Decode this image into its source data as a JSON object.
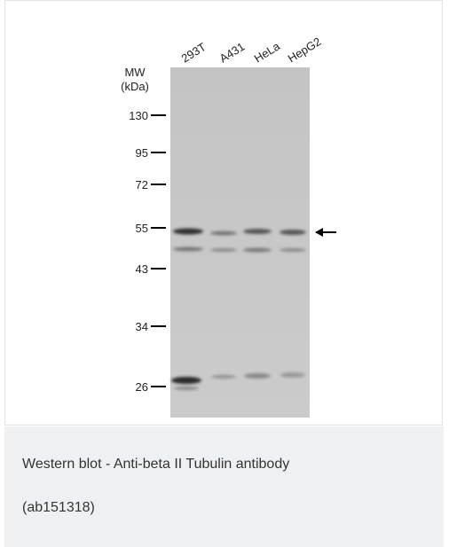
{
  "blot": {
    "lanes": [
      "293T",
      "A431",
      "HeLa",
      "HepG2"
    ],
    "mw_label": "MW",
    "unit_label": "(kDa)",
    "markers": [
      "130",
      "95",
      "72",
      "55",
      "43",
      "34",
      "26"
    ]
  },
  "caption": {
    "lines": [
      "Western blot - Anti-beta II Tubulin antibody",
      "(ab151318)"
    ]
  }
}
